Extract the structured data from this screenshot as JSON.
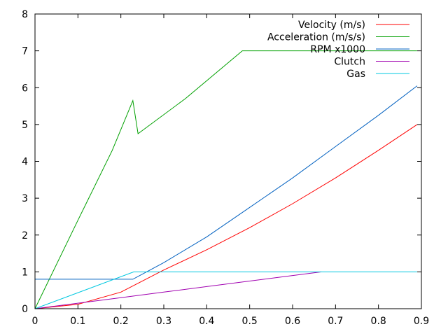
{
  "chart_data": {
    "type": "line",
    "xlim": [
      0,
      0.9
    ],
    "ylim": [
      0,
      8
    ],
    "xticks": [
      "0",
      "0.1",
      "0.2",
      "0.3",
      "0.4",
      "0.5",
      "0.6",
      "0.7",
      "0.8",
      "0.9"
    ],
    "yticks": [
      "0",
      "1",
      "2",
      "3",
      "4",
      "5",
      "6",
      "7",
      "8"
    ],
    "grid": false,
    "legend_position": "top-right",
    "series": [
      {
        "name": "Velocity (m/s)",
        "color": "#ff0000",
        "x": [
          0,
          0.1,
          0.2,
          0.3,
          0.4,
          0.5,
          0.6,
          0.7,
          0.8,
          0.89
        ],
        "y": [
          0,
          0.12,
          0.45,
          1.05,
          1.6,
          2.2,
          2.85,
          3.55,
          4.3,
          5.0
        ]
      },
      {
        "name": "Acceleration (m/s/s)",
        "color": "#00a000",
        "x": [
          0,
          0.1,
          0.18,
          0.228,
          0.24,
          0.35,
          0.483,
          0.89
        ],
        "y": [
          0,
          2.4,
          4.3,
          5.65,
          4.75,
          5.7,
          7.0,
          7.0
        ]
      },
      {
        "name": "RPM x1000",
        "color": "#0060c0",
        "x": [
          0,
          0.228,
          0.3,
          0.4,
          0.5,
          0.6,
          0.7,
          0.8,
          0.89
        ],
        "y": [
          0.8,
          0.8,
          1.25,
          1.95,
          2.75,
          3.55,
          4.4,
          5.25,
          6.05
        ]
      },
      {
        "name": "Clutch",
        "color": "#a000b0",
        "x": [
          0,
          0.1,
          0.2,
          0.3,
          0.4,
          0.5,
          0.6,
          0.667
        ],
        "y": [
          0,
          0.15,
          0.3,
          0.45,
          0.6,
          0.75,
          0.9,
          1.0
        ]
      },
      {
        "name": "Gas",
        "color": "#00c8e0",
        "x": [
          0,
          0.23,
          0.89
        ],
        "y": [
          0,
          1.0,
          1.0
        ]
      }
    ]
  }
}
